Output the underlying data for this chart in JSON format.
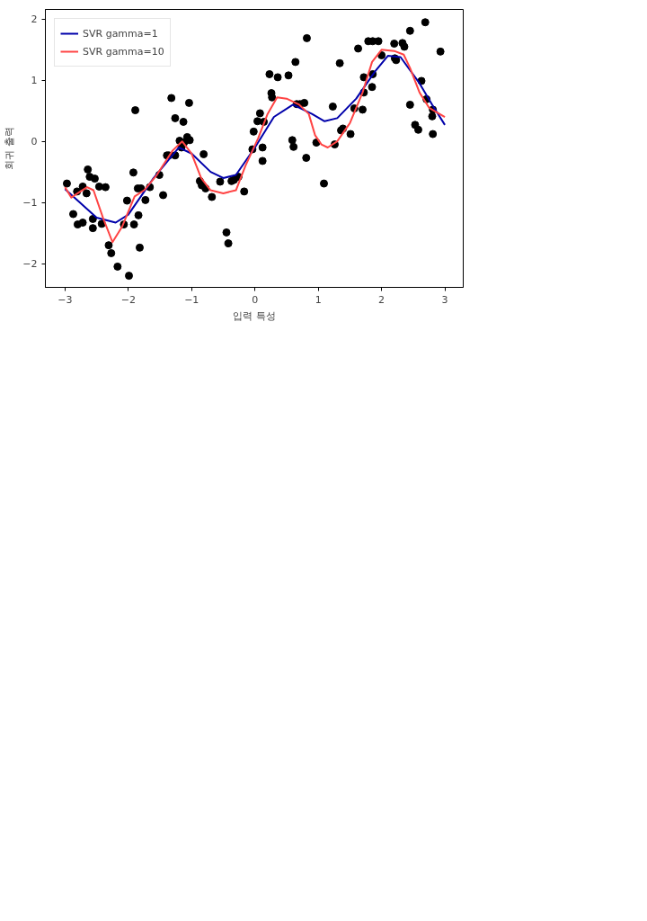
{
  "chart_data": {
    "type": "scatter",
    "xlabel": "입력 특성",
    "ylabel": "회귀 출력",
    "xlim": [
      -3.31,
      3.29
    ],
    "ylim": [
      -2.39,
      2.16
    ],
    "xticks": [
      {
        "value": -3,
        "label": "−3"
      },
      {
        "value": -2,
        "label": "−2"
      },
      {
        "value": -1,
        "label": "−1"
      },
      0,
      1,
      2,
      3
    ],
    "yticks": [
      {
        "value": -2,
        "label": "−2"
      },
      {
        "value": -1,
        "label": "−1"
      },
      0,
      1,
      2
    ],
    "grid": false,
    "legend": "top left",
    "series": [
      {
        "marker": "circle",
        "color": "#000000",
        "x": [
          -2.97,
          -2.87,
          -2.81,
          -2.8,
          -2.72,
          -2.72,
          -2.66,
          -2.64,
          -2.61,
          -2.56,
          -2.56,
          -2.53,
          -2.46,
          -2.42,
          -2.36,
          -2.31,
          -2.27,
          -2.17,
          -2.07,
          -2.02,
          -1.99,
          -1.92,
          -1.91,
          -1.89,
          -1.85,
          -1.84,
          -1.82,
          -1.8,
          -1.73,
          -1.66,
          -1.51,
          -1.45,
          -1.39,
          -1.36,
          -1.32,
          -1.26,
          -1.26,
          -1.19,
          -1.16,
          -1.13,
          -1.12,
          -1.07,
          -1.04,
          -1.03,
          -0.87,
          -0.84,
          -0.81,
          -0.78,
          -0.68,
          -0.55,
          -0.45,
          -0.42,
          -0.37,
          -0.33,
          -0.26,
          -0.17,
          -0.04,
          -0.02,
          0.04,
          0.08,
          0.12,
          0.12,
          0.14,
          0.23,
          0.26,
          0.27,
          0.36,
          0.53,
          0.59,
          0.61,
          0.64,
          0.66,
          0.71,
          0.78,
          0.81,
          0.82,
          0.97,
          1.09,
          1.23,
          1.26,
          1.34,
          1.36,
          1.39,
          1.51,
          1.57,
          1.63,
          1.7,
          1.72,
          1.72,
          1.79,
          1.86,
          1.95,
          1.85,
          1.86,
          2.0,
          2.2,
          2.21,
          2.23,
          2.33,
          2.36,
          2.45,
          2.45,
          2.53,
          2.58,
          2.63,
          2.69,
          2.71,
          2.81,
          2.8,
          2.81,
          2.93
        ],
        "values": [
          -0.69,
          -1.19,
          -0.82,
          -1.36,
          -1.33,
          -0.74,
          -0.85,
          -0.46,
          -0.58,
          -1.42,
          -1.27,
          -0.61,
          -0.74,
          -1.35,
          -0.75,
          -1.7,
          -1.83,
          -2.05,
          -1.36,
          -0.97,
          -2.2,
          -0.51,
          -1.36,
          0.51,
          -0.77,
          -1.21,
          -1.74,
          -0.77,
          -0.96,
          -0.75,
          -0.55,
          -0.88,
          -0.23,
          -0.23,
          0.71,
          0.38,
          -0.23,
          0.01,
          -0.1,
          0.32,
          -0.02,
          0.07,
          0.63,
          0.02,
          -0.65,
          -0.72,
          -0.21,
          -0.77,
          -0.91,
          -0.66,
          -1.49,
          -1.67,
          -0.65,
          -0.63,
          -0.58,
          -0.82,
          -0.13,
          0.16,
          0.33,
          0.46,
          -0.32,
          -0.1,
          0.32,
          1.1,
          0.79,
          0.72,
          1.05,
          1.08,
          0.02,
          -0.09,
          1.3,
          0.61,
          0.61,
          0.63,
          -0.27,
          1.69,
          -0.02,
          -0.69,
          0.57,
          -0.05,
          1.28,
          0.18,
          0.21,
          0.12,
          0.54,
          1.52,
          0.52,
          1.05,
          0.8,
          1.64,
          1.64,
          1.64,
          0.89,
          1.1,
          1.41,
          1.6,
          1.36,
          1.33,
          1.61,
          1.55,
          0.6,
          1.81,
          0.27,
          0.19,
          0.99,
          1.95,
          0.69,
          0.52,
          0.41,
          0.12,
          1.47
        ]
      },
      {
        "type": "line",
        "name": "SVR gamma=1",
        "color": "#0000aa",
        "x": [
          -3,
          -2.5,
          -2.2,
          -2,
          -1.6,
          -1.2,
          -1,
          -0.7,
          -0.5,
          -0.3,
          0,
          0.3,
          0.6,
          0.9,
          1.1,
          1.3,
          1.6,
          1.9,
          2.1,
          2.3,
          2.6,
          2.8,
          3
        ],
        "values": [
          -0.78,
          -1.25,
          -1.33,
          -1.2,
          -0.6,
          -0.1,
          -0.2,
          -0.5,
          -0.6,
          -0.55,
          -0.1,
          0.4,
          0.6,
          0.45,
          0.33,
          0.38,
          0.7,
          1.15,
          1.4,
          1.38,
          0.95,
          0.6,
          0.27
        ]
      },
      {
        "type": "line",
        "name": "SVR gamma=10",
        "color": "#ff4444",
        "x": [
          -3,
          -2.9,
          -2.8,
          -2.65,
          -2.55,
          -2.4,
          -2.25,
          -2.1,
          -1.9,
          -1.75,
          -1.55,
          -1.3,
          -1.15,
          -1,
          -0.85,
          -0.7,
          -0.5,
          -0.3,
          -0.15,
          0.05,
          0.2,
          0.35,
          0.5,
          0.7,
          0.85,
          0.95,
          1.05,
          1.15,
          1.3,
          1.5,
          1.7,
          1.85,
          2,
          2.2,
          2.35,
          2.45,
          2.6,
          2.75,
          3
        ],
        "values": [
          -0.75,
          -0.92,
          -0.85,
          -0.75,
          -0.8,
          -1.25,
          -1.65,
          -1.4,
          -0.9,
          -0.8,
          -0.55,
          -0.15,
          0,
          -0.2,
          -0.6,
          -0.8,
          -0.85,
          -0.8,
          -0.4,
          0.05,
          0.45,
          0.72,
          0.7,
          0.6,
          0.45,
          0.1,
          -0.05,
          -0.1,
          0,
          0.3,
          0.8,
          1.3,
          1.5,
          1.48,
          1.42,
          1.2,
          0.8,
          0.55,
          0.4
        ]
      }
    ]
  }
}
